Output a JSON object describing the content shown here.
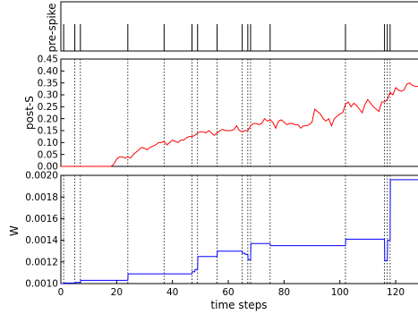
{
  "chart_data": [
    {
      "type": "raster",
      "ylabel": "pre-spike",
      "xlim": [
        0,
        128
      ],
      "spike_times": [
        1,
        5,
        7,
        24,
        37,
        47,
        49,
        56,
        65,
        67,
        68,
        75,
        102,
        116,
        117,
        118
      ]
    },
    {
      "type": "line",
      "ylabel": "post-S",
      "xlim": [
        0,
        128
      ],
      "ylim": [
        0,
        0.45
      ],
      "yticks": [
        "0.00",
        "0.05",
        "0.10",
        "0.15",
        "0.20",
        "0.25",
        "0.30",
        "0.35",
        "0.40",
        "0.45"
      ],
      "vlines": [
        5,
        7,
        24,
        37,
        47,
        49,
        56,
        65,
        67,
        68,
        75,
        102,
        116,
        117,
        118
      ],
      "series": [
        {
          "color": "#ff0000",
          "x": [
            0,
            10,
            18,
            19,
            20,
            21,
            22,
            23,
            24,
            25,
            26,
            27,
            28,
            29,
            30,
            31,
            32,
            33,
            34,
            35,
            36,
            37,
            38,
            39,
            40,
            41,
            42,
            43,
            44,
            45,
            46,
            47,
            48,
            49,
            50,
            51,
            52,
            53,
            54,
            55,
            56,
            57,
            58,
            59,
            60,
            61,
            62,
            63,
            64,
            65,
            66,
            67,
            68,
            69,
            70,
            71,
            72,
            73,
            74,
            75,
            76,
            77,
            78,
            79,
            80,
            81,
            82,
            83,
            84,
            85,
            86,
            87,
            88,
            89,
            90,
            91,
            92,
            93,
            94,
            95,
            96,
            97,
            98,
            99,
            100,
            101,
            102,
            103,
            104,
            105,
            106,
            107,
            108,
            109,
            110,
            111,
            112,
            113,
            114,
            115,
            116,
            117,
            118,
            119,
            120,
            121,
            122,
            123,
            124,
            125,
            126,
            127,
            128
          ],
          "y": [
            0,
            0,
            0,
            0.01,
            0.03,
            0.04,
            0.04,
            0.035,
            0.04,
            0.035,
            0.05,
            0.06,
            0.07,
            0.08,
            0.075,
            0.07,
            0.08,
            0.085,
            0.09,
            0.1,
            0.1,
            0.105,
            0.09,
            0.1,
            0.11,
            0.105,
            0.1,
            0.11,
            0.11,
            0.12,
            0.125,
            0.125,
            0.13,
            0.14,
            0.145,
            0.145,
            0.14,
            0.15,
            0.14,
            0.13,
            0.14,
            0.15,
            0.155,
            0.15,
            0.15,
            0.15,
            0.155,
            0.17,
            0.15,
            0.145,
            0.15,
            0.15,
            0.17,
            0.18,
            0.18,
            0.175,
            0.18,
            0.2,
            0.19,
            0.195,
            0.185,
            0.16,
            0.19,
            0.195,
            0.185,
            0.175,
            0.18,
            0.18,
            0.175,
            0.175,
            0.16,
            0.17,
            0.17,
            0.175,
            0.185,
            0.24,
            0.23,
            0.22,
            0.2,
            0.19,
            0.2,
            0.17,
            0.2,
            0.21,
            0.22,
            0.225,
            0.26,
            0.27,
            0.25,
            0.265,
            0.255,
            0.24,
            0.225,
            0.26,
            0.28,
            0.265,
            0.25,
            0.24,
            0.23,
            0.27,
            0.27,
            0.28,
            0.31,
            0.3,
            0.33,
            0.32,
            0.315,
            0.32,
            0.345,
            0.35,
            0.34,
            0.335,
            0.335
          ]
        }
      ]
    },
    {
      "type": "line",
      "ylabel": "W",
      "xlabel": "time steps",
      "xlim": [
        0,
        128
      ],
      "ylim": [
        0.001,
        0.002
      ],
      "yticks": [
        "0.0010",
        "0.0012",
        "0.0014",
        "0.0016",
        "0.0018",
        "0.0020"
      ],
      "xticks": [
        "0",
        "20",
        "40",
        "60",
        "80",
        "100",
        "120"
      ],
      "vlines": [
        1,
        5,
        7,
        24,
        37,
        47,
        49,
        56,
        65,
        67,
        68,
        75,
        102,
        116,
        117,
        118
      ],
      "series": [
        {
          "color": "#0000ff",
          "x": [
            0,
            1,
            1.2,
            5,
            5.1,
            7,
            7.1,
            24,
            24.1,
            37,
            37.1,
            47,
            47.1,
            48,
            48.1,
            49,
            49.1,
            56,
            56.1,
            65,
            65.1,
            66,
            66.1,
            67,
            67.1,
            68,
            68.1,
            75,
            75.1,
            102,
            102.1,
            116,
            116.1,
            117,
            117.1,
            118,
            118.1,
            128
          ],
          "y": [
            0.001,
            0.001,
            0.001005,
            0.001005,
            0.00101,
            0.00101,
            0.00103,
            0.00103,
            0.00109,
            0.00109,
            0.00109,
            0.00109,
            0.00111,
            0.00111,
            0.00113,
            0.00113,
            0.00125,
            0.00125,
            0.0013,
            0.0013,
            0.00128,
            0.00128,
            0.00127,
            0.00127,
            0.00122,
            0.00122,
            0.00137,
            0.00137,
            0.00135,
            0.00135,
            0.00141,
            0.00141,
            0.00121,
            0.00121,
            0.0014,
            0.0014,
            0.00196,
            0.00196
          ]
        }
      ]
    }
  ]
}
